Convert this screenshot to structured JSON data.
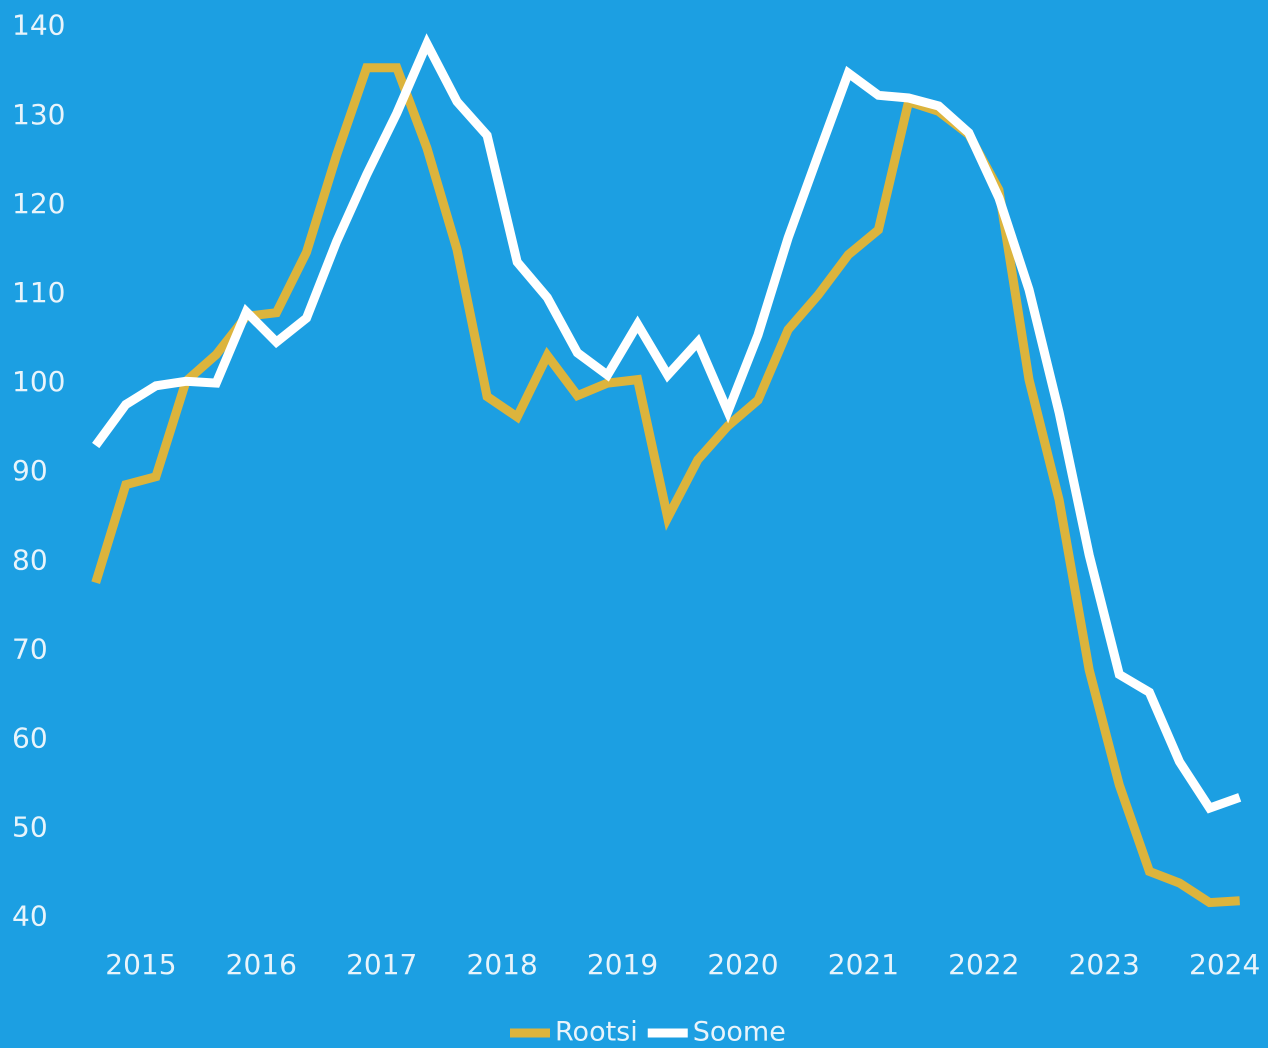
{
  "chart_data": {
    "type": "line",
    "x": [
      2014.625,
      2014.875,
      2015.125,
      2015.375,
      2015.625,
      2015.875,
      2016.125,
      2016.375,
      2016.625,
      2016.875,
      2017.125,
      2017.375,
      2017.625,
      2017.875,
      2018.125,
      2018.375,
      2018.625,
      2018.875,
      2019.125,
      2019.375,
      2019.625,
      2019.875,
      2020.125,
      2020.375,
      2020.625,
      2020.875,
      2021.125,
      2021.375,
      2021.625,
      2021.875,
      2022.125,
      2022.375,
      2022.625,
      2022.875,
      2023.125,
      2023.375,
      2023.625,
      2023.875,
      2024.125
    ],
    "series": [
      {
        "name": "Rootsi",
        "color": "#dcb43c",
        "values": [
          77.6,
          88.6,
          89.5,
          100.2,
          103.2,
          107.5,
          107.9,
          114.7,
          125.6,
          135.4,
          135.4,
          126.4,
          115,
          98.5,
          96.2,
          103.1,
          98.6,
          100,
          100.4,
          84.9,
          91.4,
          95.2,
          98.1,
          106,
          109.9,
          114.4,
          117.2,
          131.6,
          130.5,
          127.9,
          121.7,
          100.4,
          86.9,
          67.8,
          54.9,
          45.2,
          43.9,
          41.7,
          41.9
        ]
      },
      {
        "name": "Soome",
        "color": "#ffffff",
        "values": [
          93,
          97.6,
          99.7,
          100.2,
          100,
          108,
          104.6,
          107.3,
          115.9,
          123.4,
          130.3,
          138.1,
          131.6,
          127.8,
          113.6,
          109.6,
          103.4,
          100.9,
          106.6,
          100.9,
          104.6,
          96.8,
          105.4,
          116.3,
          125.6,
          134.8,
          132.3,
          132,
          131.1,
          128.1,
          120.8,
          110.5,
          96.7,
          80.7,
          67.3,
          65.3,
          57.5,
          52.3,
          53.5
        ]
      }
    ],
    "xlim": [
      2013.83,
      2024.36
    ],
    "xticks": [
      2015,
      2016,
      2017,
      2018,
      2019,
      2020,
      2021,
      2022,
      2023,
      2024
    ],
    "ylim": [
      37.5,
      143
    ],
    "yticks": [
      40,
      50,
      60,
      70,
      80,
      90,
      100,
      110,
      120,
      130,
      140
    ],
    "legend": "bottom"
  }
}
